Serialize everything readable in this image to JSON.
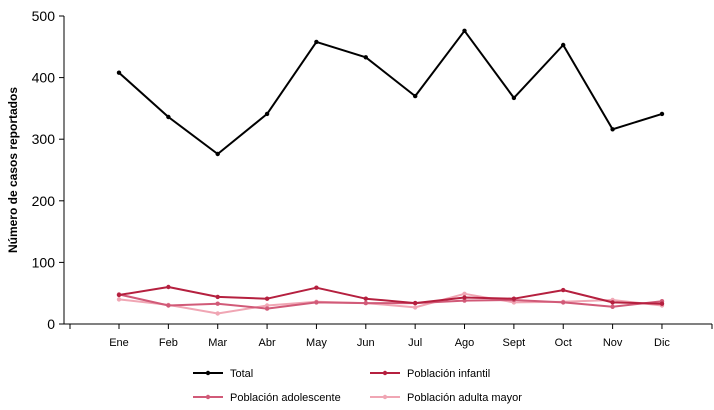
{
  "chart_data": {
    "type": "line",
    "title": "",
    "xlabel": "",
    "ylabel": "Número de casos reportados",
    "categories": [
      "Ene",
      "Feb",
      "Mar",
      "Abr",
      "May",
      "Jun",
      "Jul",
      "Ago",
      "Sept",
      "Oct",
      "Nov",
      "Dic"
    ],
    "ylim": [
      0,
      500
    ],
    "yticks": [
      0,
      100,
      200,
      300,
      400,
      500
    ],
    "grid": false,
    "legend_position": "bottom",
    "series": [
      {
        "name": "Total",
        "color": "#000000",
        "values": [
          408,
          336,
          276,
          341,
          458,
          433,
          370,
          476,
          367,
          453,
          316,
          341
        ]
      },
      {
        "name": "Población infantil",
        "color": "#b5203f",
        "values": [
          47,
          60,
          44,
          41,
          59,
          41,
          34,
          43,
          41,
          55,
          35,
          33
        ]
      },
      {
        "name": "Población adolescente",
        "color": "#d15a78",
        "values": [
          48,
          30,
          33,
          25,
          35,
          34,
          34,
          38,
          39,
          35,
          28,
          37
        ]
      },
      {
        "name": "Población adulta mayor",
        "color": "#f0a6b4",
        "values": [
          40,
          31,
          17,
          30,
          36,
          34,
          27,
          49,
          35,
          36,
          39,
          30
        ]
      }
    ]
  }
}
